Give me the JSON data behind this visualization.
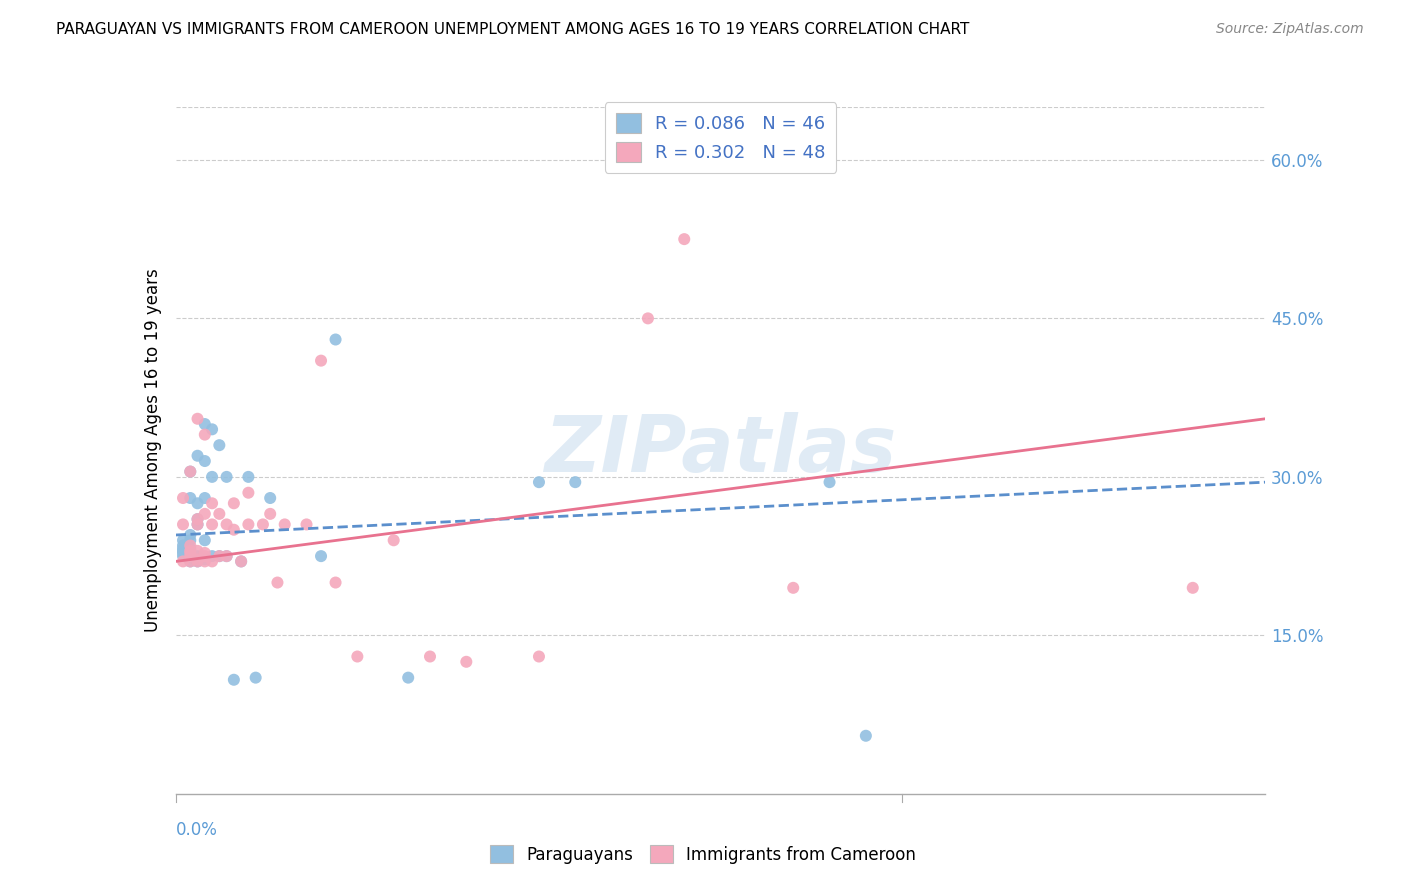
{
  "title": "PARAGUAYAN VS IMMIGRANTS FROM CAMEROON UNEMPLOYMENT AMONG AGES 16 TO 19 YEARS CORRELATION CHART",
  "source": "Source: ZipAtlas.com",
  "ylabel": "Unemployment Among Ages 16 to 19 years",
  "xlim": [
    0.0,
    0.15
  ],
  "ylim": [
    0.0,
    0.65
  ],
  "yticks": [
    0.15,
    0.3,
    0.45,
    0.6
  ],
  "ytick_labels": [
    "15.0%",
    "30.0%",
    "45.0%",
    "60.0%"
  ],
  "paraguayan_color": "#92BFE0",
  "cameroon_color": "#F4A8BC",
  "trend_paraguayan_color": "#5B8FCC",
  "trend_cameroon_color": "#E8728F",
  "paraguayan_x": [
    0.001,
    0.001,
    0.001,
    0.001,
    0.001,
    0.001,
    0.002,
    0.002,
    0.002,
    0.002,
    0.002,
    0.002,
    0.002,
    0.002,
    0.002,
    0.003,
    0.003,
    0.003,
    0.003,
    0.003,
    0.003,
    0.003,
    0.004,
    0.004,
    0.004,
    0.004,
    0.004,
    0.005,
    0.005,
    0.005,
    0.006,
    0.006,
    0.007,
    0.007,
    0.008,
    0.009,
    0.01,
    0.011,
    0.013,
    0.02,
    0.022,
    0.032,
    0.05,
    0.055,
    0.09,
    0.095
  ],
  "paraguayan_y": [
    0.225,
    0.228,
    0.23,
    0.232,
    0.235,
    0.24,
    0.22,
    0.222,
    0.225,
    0.228,
    0.232,
    0.24,
    0.245,
    0.28,
    0.305,
    0.22,
    0.222,
    0.225,
    0.255,
    0.26,
    0.275,
    0.32,
    0.222,
    0.24,
    0.28,
    0.315,
    0.35,
    0.225,
    0.3,
    0.345,
    0.225,
    0.33,
    0.225,
    0.3,
    0.108,
    0.22,
    0.3,
    0.11,
    0.28,
    0.225,
    0.43,
    0.11,
    0.295,
    0.295,
    0.295,
    0.055
  ],
  "cameroon_x": [
    0.001,
    0.001,
    0.001,
    0.002,
    0.002,
    0.002,
    0.002,
    0.002,
    0.002,
    0.003,
    0.003,
    0.003,
    0.003,
    0.003,
    0.003,
    0.004,
    0.004,
    0.004,
    0.004,
    0.004,
    0.005,
    0.005,
    0.005,
    0.006,
    0.006,
    0.007,
    0.007,
    0.008,
    0.008,
    0.009,
    0.01,
    0.01,
    0.012,
    0.013,
    0.014,
    0.015,
    0.018,
    0.02,
    0.022,
    0.025,
    0.03,
    0.035,
    0.04,
    0.05,
    0.065,
    0.07,
    0.085,
    0.14
  ],
  "cameroon_y": [
    0.22,
    0.255,
    0.28,
    0.22,
    0.225,
    0.228,
    0.23,
    0.235,
    0.305,
    0.22,
    0.222,
    0.23,
    0.255,
    0.26,
    0.355,
    0.22,
    0.225,
    0.228,
    0.265,
    0.34,
    0.22,
    0.255,
    0.275,
    0.225,
    0.265,
    0.225,
    0.255,
    0.25,
    0.275,
    0.22,
    0.255,
    0.285,
    0.255,
    0.265,
    0.2,
    0.255,
    0.255,
    0.41,
    0.2,
    0.13,
    0.24,
    0.13,
    0.125,
    0.13,
    0.45,
    0.525,
    0.195,
    0.195
  ],
  "trend_p_x0": 0.0,
  "trend_p_x1": 0.15,
  "trend_p_y0": 0.245,
  "trend_p_y1": 0.295,
  "trend_c_x0": 0.0,
  "trend_c_x1": 0.15,
  "trend_c_y0": 0.22,
  "trend_c_y1": 0.355
}
